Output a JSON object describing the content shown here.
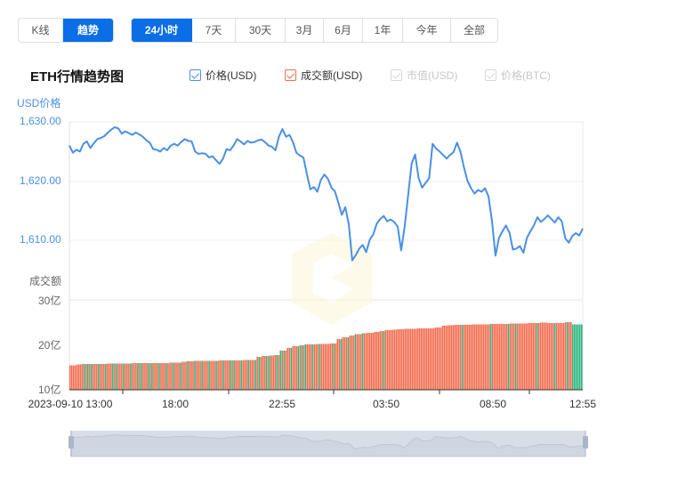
{
  "view_toggle": [
    {
      "label": "K线",
      "active": false
    },
    {
      "label": "趋势",
      "active": true
    }
  ],
  "range_tabs": [
    {
      "label": "24小时",
      "active": true
    },
    {
      "label": "7天",
      "active": false
    },
    {
      "label": "30天",
      "active": false
    },
    {
      "label": "3月",
      "active": false
    },
    {
      "label": "6月",
      "active": false
    },
    {
      "label": "1年",
      "active": false
    },
    {
      "label": "今年",
      "active": false
    },
    {
      "label": "全部",
      "active": false
    }
  ],
  "chart_title": "ETH行情趋势图",
  "legend": [
    {
      "label": "价格(USD)",
      "checked": true,
      "color": "#4a90e2"
    },
    {
      "label": "成交额(USD)",
      "checked": true,
      "color": "#f26c4f"
    },
    {
      "label": "市值(USD)",
      "checked": false,
      "color": "#cccccc"
    },
    {
      "label": "价格(BTC)",
      "checked": false,
      "color": "#cccccc"
    }
  ],
  "colors": {
    "accent": "#0a6ee6",
    "price_line": "#4a90e2",
    "volume_up": "#f26c4f",
    "volume_down": "#2fb57e",
    "grid": "#eeeeee",
    "navigator_fill": "#d5dbe5"
  },
  "chart_data": [
    {
      "type": "line",
      "title": "ETH行情趋势图",
      "ylabel": "USD价格",
      "yticks": [
        "1,630.00",
        "1,620.00",
        "1,610.00"
      ],
      "ylim": [
        1605,
        1630
      ],
      "xticks": [
        "2023-09-10 13:00",
        "18:00",
        "22:55",
        "03:50",
        "08:50",
        "12:55"
      ],
      "series": [
        {
          "name": "价格(USD)",
          "values": [
            1626.0,
            1624.8,
            1625.3,
            1625.0,
            1626.3,
            1626.7,
            1625.6,
            1626.4,
            1627.1,
            1627.3,
            1627.6,
            1628.2,
            1628.7,
            1629.1,
            1628.9,
            1628.0,
            1628.4,
            1628.1,
            1627.8,
            1628.2,
            1627.9,
            1627.5,
            1626.9,
            1626.5,
            1625.4,
            1625.3,
            1625.0,
            1625.6,
            1625.2,
            1626.0,
            1626.3,
            1626.0,
            1626.6,
            1627.1,
            1626.8,
            1626.7,
            1625.0,
            1624.6,
            1624.7,
            1624.6,
            1624.0,
            1624.2,
            1623.5,
            1622.9,
            1623.8,
            1625.4,
            1625.2,
            1626.0,
            1627.1,
            1626.7,
            1626.2,
            1626.8,
            1626.5,
            1626.6,
            1626.9,
            1627.0,
            1626.6,
            1626.0,
            1625.8,
            1625.2,
            1627.5,
            1628.8,
            1627.5,
            1627.8,
            1626.6,
            1624.8,
            1624.3,
            1624.0,
            1621.2,
            1618.6,
            1619.0,
            1618.2,
            1620.2,
            1621.1,
            1620.4,
            1618.9,
            1618.3,
            1616.4,
            1614.3,
            1615.6,
            1612.7,
            1606.6,
            1607.5,
            1608.6,
            1609.2,
            1608.0,
            1610.1,
            1611.0,
            1612.8,
            1613.6,
            1614.1,
            1613.2,
            1613.5,
            1613.1,
            1612.3,
            1608.3,
            1612.3,
            1617.6,
            1623.0,
            1624.5,
            1620.5,
            1618.9,
            1619.7,
            1620.5,
            1626.3,
            1625.5,
            1625.0,
            1624.4,
            1623.8,
            1624.4,
            1624.9,
            1626.5,
            1624.9,
            1622.3,
            1620.0,
            1618.8,
            1617.9,
            1618.5,
            1618.2,
            1618.8,
            1617.4,
            1613.3,
            1607.4,
            1610.4,
            1611.5,
            1612.5,
            1611.3,
            1608.4,
            1608.6,
            1609.0,
            1607.9,
            1610.4,
            1611.5,
            1612.5,
            1613.9,
            1613.1,
            1613.6,
            1614.2,
            1613.6,
            1613.0,
            1613.9,
            1613.2,
            1610.3,
            1609.6,
            1610.7,
            1611.2,
            1610.8,
            1612.0
          ]
        }
      ]
    },
    {
      "type": "bar",
      "title": "成交额",
      "ylabel": "成交额",
      "yticks": [
        "30亿",
        "20亿",
        "10亿"
      ],
      "ylim": [
        10,
        30
      ],
      "unit": "亿 USD",
      "series": [
        {
          "name": "成交额(USD)",
          "values": [
            15.3,
            15.5,
            15.6,
            15.6,
            15.6,
            15.6,
            15.7,
            15.7,
            15.7,
            15.7,
            15.8,
            15.8,
            15.8,
            15.8,
            15.8,
            15.8,
            15.9,
            15.9,
            16.1,
            16.2,
            16.3,
            16.3,
            16.3,
            16.3,
            16.4,
            16.4,
            16.4,
            16.4,
            16.5,
            16.5,
            17.2,
            17.4,
            17.5,
            17.6,
            18.6,
            19.2,
            19.6,
            19.8,
            20.0,
            20.0,
            20.1,
            20.1,
            20.2,
            21.2,
            21.6,
            22.0,
            22.3,
            22.5,
            22.6,
            22.8,
            23.0,
            23.2,
            23.3,
            23.4,
            23.5,
            23.5,
            23.6,
            23.6,
            23.6,
            23.8,
            24.2,
            24.3,
            24.4,
            24.4,
            24.4,
            24.5,
            24.5,
            24.5,
            24.6,
            24.6,
            24.6,
            24.7,
            24.7,
            24.7,
            24.8,
            24.8,
            24.9,
            24.8,
            24.8,
            24.8,
            25.0,
            24.5,
            24.5
          ]
        }
      ]
    }
  ],
  "navigator": {
    "label": "时间范围滑块"
  }
}
